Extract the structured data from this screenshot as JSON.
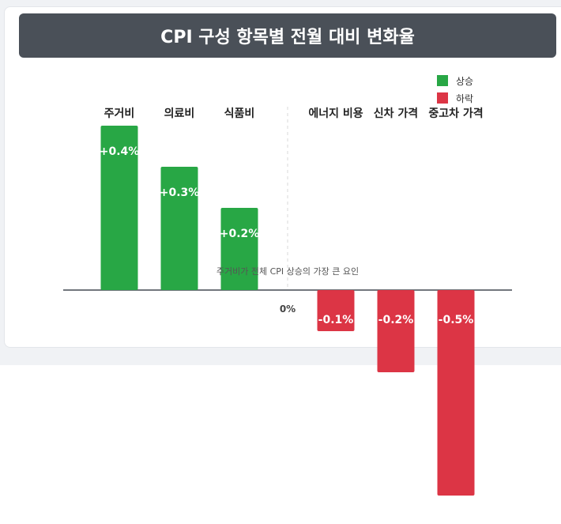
{
  "chart_data": {
    "type": "bar",
    "title": "CPI 구성 항목별 전월 대비 변화율",
    "categories": [
      "주거비",
      "의료비",
      "식품비",
      "에너지 비용",
      "신차 가격",
      "중고차 가격"
    ],
    "values": [
      0.4,
      0.3,
      0.2,
      -0.1,
      -0.2,
      -0.5
    ],
    "value_labels": [
      "+0.4%",
      "+0.3%",
      "+0.2%",
      "-0.1%",
      "-0.2%",
      "-0.5%"
    ],
    "zero_label": "0%",
    "legend": {
      "position": "top-right",
      "items": [
        {
          "label": "상승",
          "color": "#28a745"
        },
        {
          "label": "하락",
          "color": "#dc3545"
        }
      ]
    },
    "annotation": "주거비가 전체 CPI 상승의 가장 큰 요인",
    "colors": {
      "up": "#28a745",
      "down": "#dc3545"
    },
    "grid": false
  }
}
